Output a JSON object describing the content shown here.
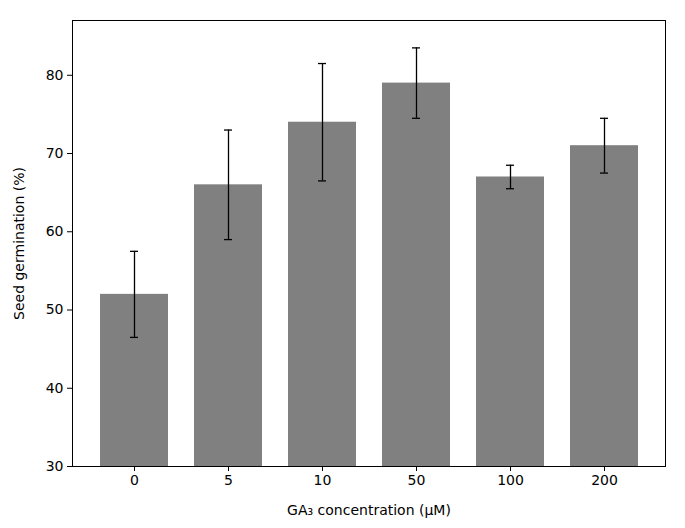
{
  "chart_data": {
    "type": "bar",
    "categories": [
      "0",
      "5",
      "10",
      "50",
      "100",
      "200"
    ],
    "values": [
      52.0,
      66.0,
      74.0,
      79.0,
      67.0,
      71.0
    ],
    "errors": [
      5.5,
      7.0,
      7.5,
      4.5,
      1.5,
      3.5
    ],
    "color": "#808080",
    "xlabel": "GA₃ concentration (μM)",
    "ylabel": "Seed germination (%)",
    "ylim": [
      30,
      87
    ],
    "yticks": [
      30,
      40,
      50,
      60,
      70,
      80
    ],
    "grid": false
  }
}
